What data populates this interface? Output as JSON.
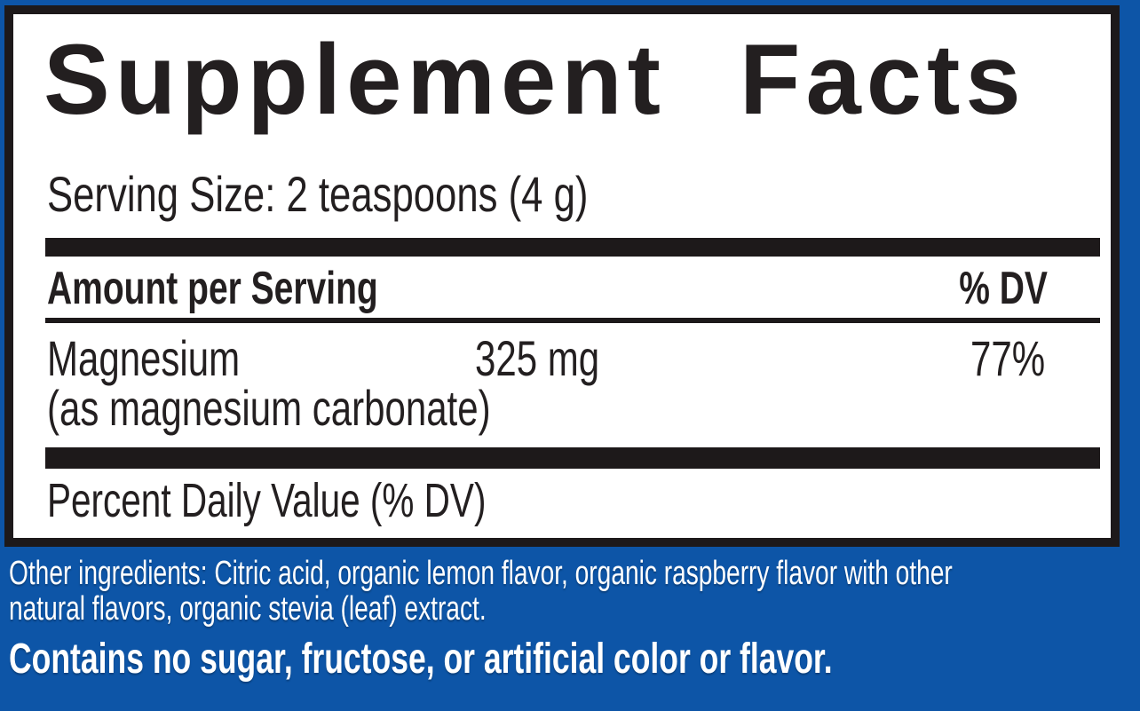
{
  "label": {
    "title": "Supplement Facts",
    "serving_size": "Serving Size: 2 teaspoons (4 g)",
    "columns": {
      "amount_header": "Amount per Serving",
      "dv_header": "% DV"
    },
    "rows": [
      {
        "name": "Magnesium",
        "detail": "(as magnesium carbonate)",
        "amount": "325 mg",
        "dv": "77%"
      }
    ],
    "footnote": "Percent Daily Value (% DV)"
  },
  "other_ingredients": {
    "line1": "Other ingredients: Citric acid, organic lemon flavor, organic raspberry flavor with other",
    "line2": "natural flavors, organic stevia (leaf) extract."
  },
  "contains_statement": "Contains no sugar, fructose, or artificial color or flavor.",
  "colors": {
    "background_blue": "#0d55a7",
    "panel_border_black": "#1d191a",
    "panel_white": "#ffffff",
    "text_black": "#231f20",
    "text_white": "#ffffff"
  }
}
